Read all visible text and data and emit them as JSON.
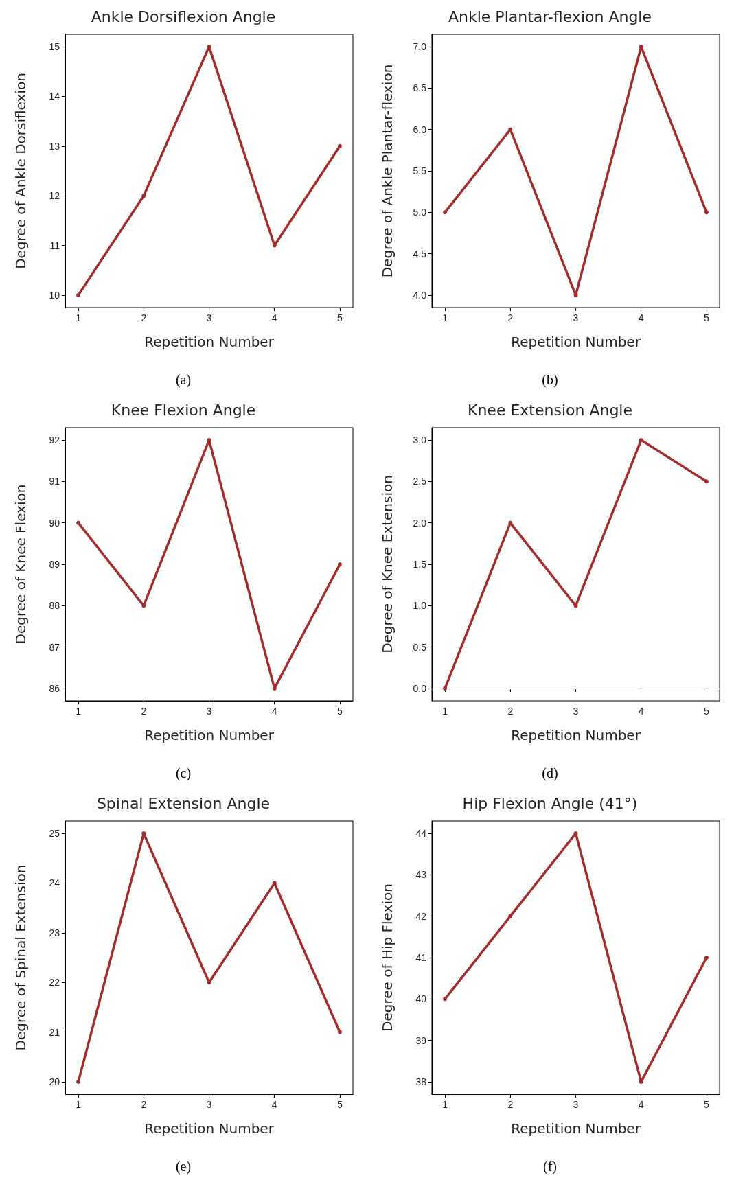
{
  "chart_data": [
    {
      "type": "line",
      "title": "Ankle Dorsiflexion Angle",
      "xlabel": "Repetition Number",
      "ylabel": "Degree of Ankle Dorsiflexion",
      "x": [
        1,
        2,
        3,
        4,
        5
      ],
      "series": [
        {
          "color": "#a52a2a",
          "values": [
            10,
            12,
            15,
            11,
            13
          ]
        }
      ],
      "xlim": [
        0.8,
        5.2
      ],
      "xticks": [
        1,
        2,
        3,
        4,
        5
      ],
      "ylim": [
        9.75,
        15.25
      ],
      "yticks": [
        10,
        11,
        12,
        13,
        14,
        15
      ],
      "marker": "circle",
      "line_style": "solid",
      "annotations": [
        "(a)"
      ]
    },
    {
      "type": "line",
      "title": "Ankle Plantar-flexion Angle",
      "xlabel": "Repetition Number",
      "ylabel": "Degree of Ankle Plantar-flexion",
      "x": [
        1,
        2,
        3,
        4,
        5
      ],
      "series": [
        {
          "color": "#a52a2a",
          "values": [
            5,
            6,
            4,
            7,
            5
          ]
        }
      ],
      "xlim": [
        0.8,
        5.2
      ],
      "xticks": [
        1,
        2,
        3,
        4,
        5
      ],
      "ylim": [
        3.85,
        7.15
      ],
      "yticks": [
        {
          "value": 4,
          "label": "4.0"
        },
        4.5,
        {
          "value": 5,
          "label": "5.0"
        },
        5.5,
        {
          "value": 6,
          "label": "6.0"
        },
        6.5,
        {
          "value": 7,
          "label": "7.0"
        }
      ],
      "marker": "circle",
      "line_style": "solid",
      "annotations": [
        "(b)"
      ]
    },
    {
      "type": "line",
      "title": "Knee Flexion Angle",
      "xlabel": "Repetition Number",
      "ylabel": "Degree of Knee Flexion",
      "x": [
        1,
        2,
        3,
        4,
        5
      ],
      "series": [
        {
          "color": "#a52a2a",
          "values": [
            90,
            88,
            92,
            86,
            89
          ]
        }
      ],
      "xlim": [
        0.8,
        5.2
      ],
      "xticks": [
        1,
        2,
        3,
        4,
        5
      ],
      "ylim": [
        85.7,
        92.3
      ],
      "yticks": [
        86,
        87,
        88,
        89,
        90,
        91,
        92
      ],
      "marker": "circle",
      "line_style": "solid",
      "annotations": [
        "(c)"
      ]
    },
    {
      "type": "line",
      "title": "Knee Extension Angle",
      "xlabel": "Repetition Number",
      "ylabel": "Degree of Knee Extension",
      "x": [
        1,
        2,
        3,
        4,
        5
      ],
      "series": [
        {
          "color": "#a52a2a",
          "values": [
            0,
            2,
            1,
            3,
            2.5
          ]
        }
      ],
      "xlim": [
        0.8,
        5.2
      ],
      "xticks": [
        1,
        2,
        3,
        4,
        5
      ],
      "ylim": [
        -0.15,
        3.15
      ],
      "yticks": [
        {
          "value": 0,
          "label": "0.0"
        },
        0.5,
        {
          "value": 1,
          "label": "1.0"
        },
        1.5,
        {
          "value": 2,
          "label": "2.0"
        },
        2.5,
        {
          "value": 3,
          "label": "3.0"
        }
      ],
      "marker": "circle",
      "line_style": "solid",
      "annotations": [
        "(d)"
      ]
    },
    {
      "type": "line",
      "title": "Spinal Extension Angle",
      "xlabel": "Repetition Number",
      "ylabel": "Degree of Spinal Extension",
      "x": [
        1,
        2,
        3,
        4,
        5
      ],
      "series": [
        {
          "color": "#a52a2a",
          "values": [
            20,
            25,
            22,
            24,
            21
          ]
        }
      ],
      "xlim": [
        0.8,
        5.2
      ],
      "xticks": [
        1,
        2,
        3,
        4,
        5
      ],
      "ylim": [
        19.75,
        25.25
      ],
      "yticks": [
        20,
        21,
        22,
        23,
        24,
        25
      ],
      "marker": "circle",
      "line_style": "solid",
      "annotations": [
        "(e)"
      ]
    },
    {
      "type": "line",
      "title": "Hip Flexion Angle (41°)",
      "xlabel": "Repetition Number",
      "ylabel": "Degree of Hip Flexion",
      "x": [
        1,
        2,
        3,
        4,
        5
      ],
      "series": [
        {
          "color": "#a52a2a",
          "values": [
            40,
            42,
            44,
            38,
            41
          ]
        }
      ],
      "xlim": [
        0.8,
        5.2
      ],
      "xticks": [
        1,
        2,
        3,
        4,
        5
      ],
      "ylim": [
        37.7,
        44.3
      ],
      "yticks": [
        38,
        39,
        40,
        41,
        42,
        43,
        44
      ],
      "marker": "circle",
      "line_style": "solid",
      "annotations": [
        "(f)"
      ]
    }
  ]
}
